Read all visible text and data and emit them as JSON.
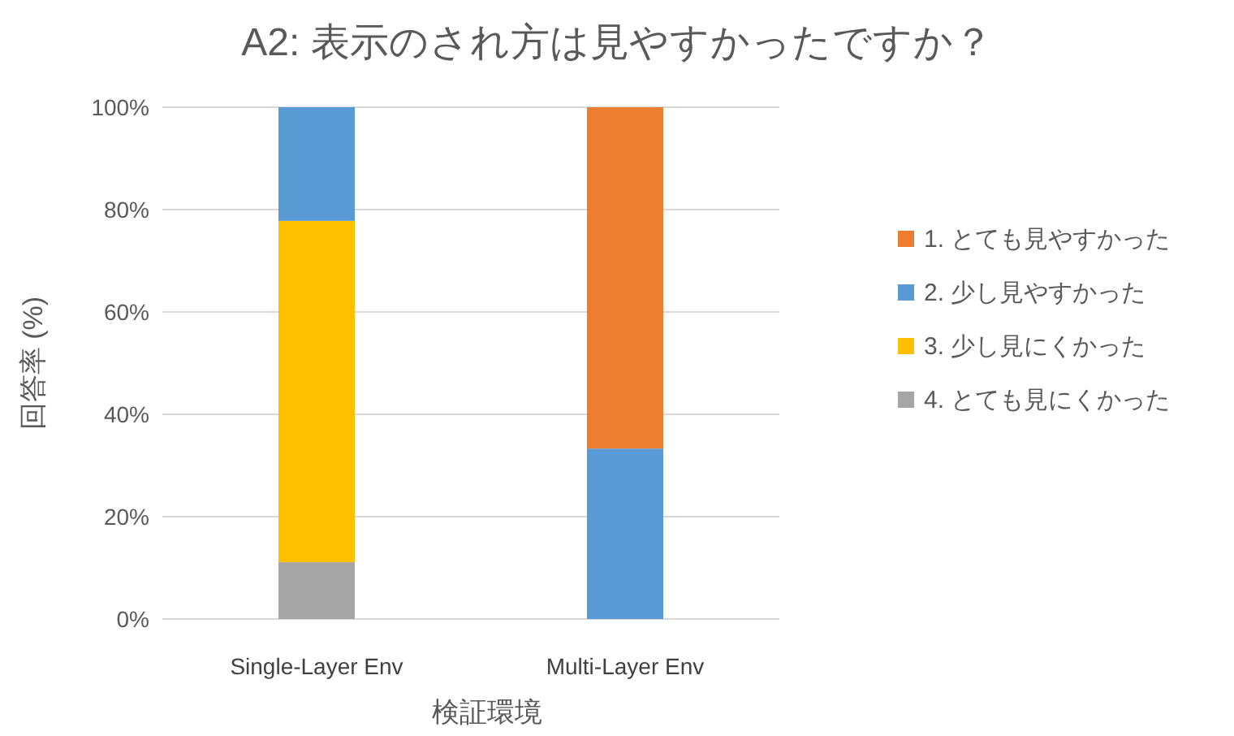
{
  "chart_data": {
    "type": "bar",
    "stacked": true,
    "title": "A2: 表示のされ方は見やすかったですか？",
    "xlabel": "検証環境",
    "ylabel": "回答率 (%)",
    "categories": [
      "Single-Layer Env",
      "Multi-Layer Env"
    ],
    "series": [
      {
        "name": "4. とても見にくかった",
        "color": "#a5a5a5",
        "values": [
          11.1,
          0
        ]
      },
      {
        "name": "3. 少し見にくかった",
        "color": "#ffc000",
        "values": [
          66.7,
          0
        ]
      },
      {
        "name": "2. 少し見やすかった",
        "color": "#5b9bd5",
        "values": [
          22.2,
          33.3
        ]
      },
      {
        "name": "1. とても見やすかった",
        "color": "#ed7d31",
        "values": [
          0,
          66.7
        ]
      }
    ],
    "ylim": [
      0,
      100
    ],
    "yticks": [
      {
        "value": 0,
        "label": "0%"
      },
      {
        "value": 20,
        "label": "20%"
      },
      {
        "value": 40,
        "label": "40%"
      },
      {
        "value": 60,
        "label": "60%"
      },
      {
        "value": 80,
        "label": "80%"
      },
      {
        "value": 100,
        "label": "100%"
      }
    ],
    "grid": "y",
    "legend": "right"
  }
}
